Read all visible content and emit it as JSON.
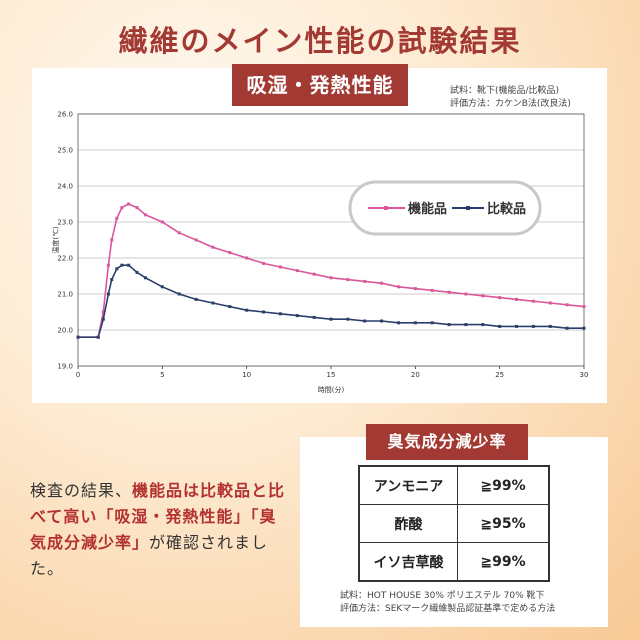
{
  "page": {
    "title": "繊維のメイン性能の試験結果"
  },
  "section1": {
    "badge": "吸湿・発熱性能",
    "note_line1": "試料：靴下(機能品/比較品)",
    "note_line2": "評価方法：カケンB法(改良法)"
  },
  "chart_data": {
    "type": "line",
    "xlabel": "時間(分)",
    "ylabel": "温度(℃)",
    "xlim": [
      0,
      30
    ],
    "ylim": [
      19.0,
      26.0
    ],
    "x_ticks": [
      "0",
      "5",
      "10",
      "15",
      "20",
      "25",
      "30"
    ],
    "y_ticks": [
      "19.0",
      "20.0",
      "21.0",
      "22.0",
      "23.0",
      "24.0",
      "25.0",
      "26.0"
    ],
    "grid": true,
    "legend_position": "top-right",
    "series": [
      {
        "name": "機能品",
        "color": "#d9579a",
        "x": [
          0,
          1.2,
          1.5,
          1.8,
          2.0,
          2.3,
          2.6,
          3.0,
          3.5,
          4.0,
          5,
          6,
          7,
          8,
          9,
          10,
          11,
          12,
          13,
          14,
          15,
          16,
          17,
          18,
          19,
          20,
          21,
          22,
          23,
          24,
          25,
          26,
          27,
          28,
          29,
          30
        ],
        "y": [
          19.8,
          19.8,
          20.5,
          21.8,
          22.5,
          23.1,
          23.4,
          23.5,
          23.4,
          23.2,
          23.0,
          22.7,
          22.5,
          22.3,
          22.15,
          22.0,
          21.85,
          21.75,
          21.65,
          21.55,
          21.45,
          21.4,
          21.35,
          21.3,
          21.2,
          21.15,
          21.1,
          21.05,
          21.0,
          20.95,
          20.9,
          20.85,
          20.8,
          20.75,
          20.7,
          20.65
        ]
      },
      {
        "name": "比較品",
        "color": "#2b3d6b",
        "x": [
          0,
          1.2,
          1.5,
          1.8,
          2.0,
          2.3,
          2.6,
          3.0,
          3.5,
          4.0,
          5,
          6,
          7,
          8,
          9,
          10,
          11,
          12,
          13,
          14,
          15,
          16,
          17,
          18,
          19,
          20,
          21,
          22,
          23,
          24,
          25,
          26,
          27,
          28,
          29,
          30
        ],
        "y": [
          19.8,
          19.8,
          20.3,
          21.0,
          21.4,
          21.7,
          21.8,
          21.8,
          21.6,
          21.45,
          21.2,
          21.0,
          20.85,
          20.75,
          20.65,
          20.55,
          20.5,
          20.45,
          20.4,
          20.35,
          20.3,
          20.3,
          20.25,
          20.25,
          20.2,
          20.2,
          20.2,
          20.15,
          20.15,
          20.15,
          20.1,
          20.1,
          20.1,
          20.1,
          20.05,
          20.05
        ]
      }
    ]
  },
  "result": {
    "t1": "検査の結果、",
    "t2": "機能品は比較品と比べて高い「吸湿・発熱性能」「臭気成分減少率」",
    "t3": "が確認されました。"
  },
  "section2": {
    "badge": "臭気成分減少率",
    "rows": [
      {
        "label": "アンモニア",
        "value": "≧99%"
      },
      {
        "label": "酢酸",
        "value": "≧95%"
      },
      {
        "label": "イソ吉草酸",
        "value": "≧99%"
      }
    ],
    "note_line1": "試料：HOT HOUSE 30% ポリエステル 70% 靴下",
    "note_line2": "評価方法：SEKマーク繊維製品認証基準で定める方法"
  }
}
